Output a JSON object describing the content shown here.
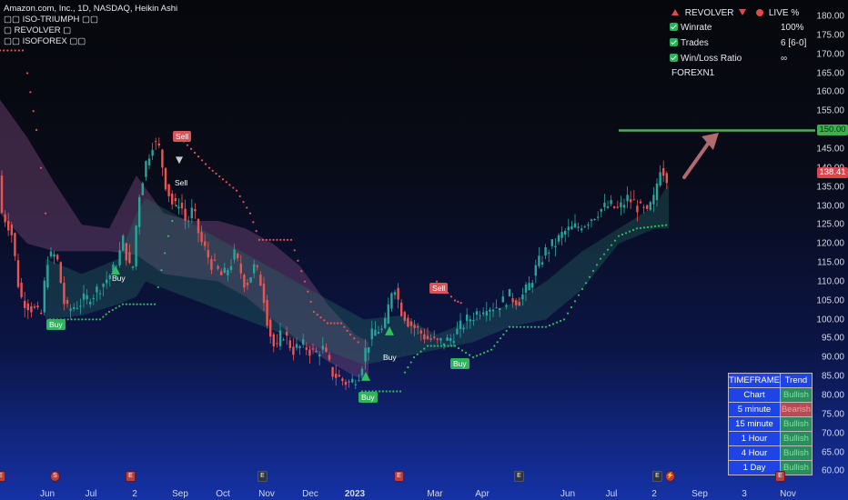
{
  "legend": {
    "symbol": "Amazon.com, Inc., 1D, NASDAQ, Heikin Ashi",
    "indicator1": "ISO-TRIUMPH",
    "indicator2": "REVOLVER",
    "indicator3": "ISOFOREX"
  },
  "stats": {
    "revolver_label": "REVOLVER",
    "live_label": "LIVE %",
    "winrate_label": "Winrate",
    "winrate_value": "100%",
    "trades_label": "Trades",
    "trades_value": "6 [6-0]",
    "winloss_label": "Win/Loss Ratio",
    "winloss_value": "∞",
    "footer": "FOREXN1"
  },
  "price_axis": [
    "180.00",
    "175.00",
    "170.00",
    "165.00",
    "160.00",
    "155.00",
    "150.00",
    "145.00",
    "140.00",
    "135.00",
    "130.00",
    "125.00",
    "120.00",
    "115.00",
    "110.00",
    "105.00",
    "100.00",
    "95.00",
    "90.00",
    "85.00",
    "80.00",
    "75.00",
    "70.00",
    "65.00",
    "60.00"
  ],
  "price_tags": {
    "target": "150.00",
    "last": "138.41"
  },
  "time_axis": [
    {
      "label": "Jun",
      "bold": false
    },
    {
      "label": "Jul",
      "bold": false
    },
    {
      "label": "2",
      "bold": false
    },
    {
      "label": "Sep",
      "bold": false
    },
    {
      "label": "Oct",
      "bold": false
    },
    {
      "label": "Nov",
      "bold": false
    },
    {
      "label": "Dec",
      "bold": false
    },
    {
      "label": "2023",
      "bold": true
    },
    {
      "label": "Mar",
      "bold": false
    },
    {
      "label": "Apr",
      "bold": false
    },
    {
      "label": "Jun",
      "bold": false
    },
    {
      "label": "Jul",
      "bold": false
    },
    {
      "label": "2",
      "bold": false
    },
    {
      "label": "Sep",
      "bold": false
    },
    {
      "label": "3",
      "bold": false
    },
    {
      "label": "Nov",
      "bold": false
    }
  ],
  "signals": {
    "sell": "Sell",
    "buy": "Buy"
  },
  "trend_table": {
    "header_tf": "TIMEFRAME",
    "header_trend": "Trend",
    "rows": [
      {
        "tf": "Chart",
        "trend": "Bullish",
        "state": "bull"
      },
      {
        "tf": "5 minute",
        "trend": "Bearish",
        "state": "bear"
      },
      {
        "tf": "15 minute",
        "trend": "Bullish",
        "state": "bull"
      },
      {
        "tf": "1 Hour",
        "trend": "Bullish",
        "state": "bull"
      },
      {
        "tf": "4 Hour",
        "trend": "Bullish",
        "state": "bull"
      },
      {
        "tf": "1 Day",
        "trend": "Bullish",
        "state": "bull"
      }
    ]
  },
  "chart_data": {
    "type": "candlestick",
    "title": "Amazon.com, Inc., 1D, NASDAQ, Heikin Ashi",
    "ylim": [
      58,
      182
    ],
    "y_ticks": [
      180,
      175,
      170,
      165,
      160,
      155,
      150,
      145,
      140,
      135,
      130,
      125,
      120,
      115,
      110,
      105,
      100,
      95,
      90,
      85,
      80,
      75,
      70,
      65,
      60
    ],
    "last_price": 138.41,
    "target_level": 150.0,
    "signals": [
      {
        "type": "Buy",
        "price": 100
      },
      {
        "type": "Sell",
        "price": 148
      },
      {
        "type": "Sell",
        "price": 141
      },
      {
        "type": "Buy",
        "price": 113
      },
      {
        "type": "Buy",
        "price": 82
      },
      {
        "type": "Buy",
        "price": 96
      },
      {
        "type": "Buy",
        "price": 90
      },
      {
        "type": "Sell",
        "price": 109
      }
    ],
    "colors": {
      "up": "#26a69a",
      "down": "#ef5350",
      "target": "#4caf50",
      "stop_bear": "#ef5350",
      "stop_bull": "#2fbf5e"
    }
  }
}
